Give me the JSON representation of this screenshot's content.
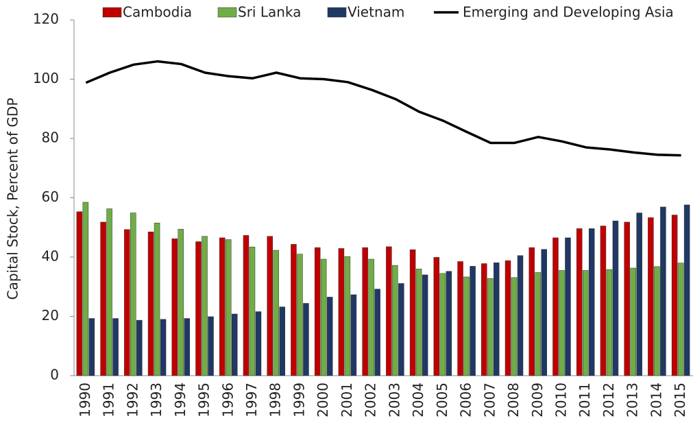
{
  "chart_data": {
    "type": "bar",
    "y_label": "Capital Stock, Percent of GDP",
    "categories": [
      "1990",
      "1991",
      "1992",
      "1993",
      "1994",
      "1995",
      "1996",
      "1997",
      "1998",
      "1999",
      "2000",
      "2001",
      "2002",
      "2003",
      "2004",
      "2005",
      "2006",
      "2007",
      "2008",
      "2009",
      "2010",
      "2011",
      "2012",
      "2013",
      "2014",
      "2015"
    ],
    "series": [
      {
        "name": "Cambodia",
        "color": "#c00000",
        "values": [
          55.3,
          51.8,
          49.3,
          48.5,
          46.2,
          45.2,
          46.5,
          47.3,
          47.0,
          44.3,
          43.2,
          42.9,
          43.2,
          43.5,
          42.5,
          39.9,
          38.5,
          37.8,
          38.8,
          43.2,
          46.5,
          49.6,
          50.5,
          51.8,
          53.3,
          54.2
        ]
      },
      {
        "name": "Sri Lanka",
        "color": "#70ad47",
        "values": [
          58.5,
          56.3,
          54.9,
          51.5,
          49.4,
          47.0,
          45.9,
          43.4,
          42.3,
          41.0,
          39.3,
          40.2,
          39.3,
          37.2,
          36.0,
          34.5,
          33.3,
          32.8,
          33.1,
          34.8,
          35.5,
          35.5,
          35.8,
          36.3,
          36.8,
          38.0
        ]
      },
      {
        "name": "Vietnam",
        "color": "#1f3864",
        "values": [
          19.3,
          19.3,
          18.7,
          19.0,
          19.3,
          19.9,
          20.8,
          21.6,
          23.2,
          24.4,
          26.5,
          27.3,
          29.2,
          31.1,
          34.0,
          35.2,
          36.9,
          38.1,
          40.5,
          42.6,
          46.5,
          49.6,
          52.2,
          54.9,
          56.9,
          57.6
        ]
      },
      {
        "name": "Emerging and Developing Asia",
        "color": "#000000",
        "type": "line",
        "values": [
          98.8,
          102.2,
          104.9,
          106.0,
          105.1,
          102.2,
          101.0,
          100.3,
          102.2,
          100.3,
          100.0,
          99.0,
          96.4,
          93.3,
          89.0,
          86.0,
          82.2,
          78.5,
          78.5,
          80.5,
          79.0,
          77.0,
          76.3,
          75.3,
          74.5,
          74.3
        ]
      }
    ],
    "ylim": [
      0,
      120
    ],
    "yticks": [
      0,
      20,
      40,
      60,
      80,
      100,
      120
    ],
    "grid": false
  }
}
